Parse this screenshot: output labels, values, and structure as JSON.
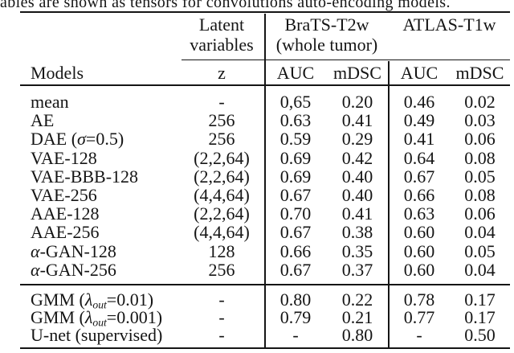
{
  "caption": "ables are shown as tensors for convolutions auto-encoding models.",
  "colors": {
    "text": "#151515",
    "background": "#ffffff"
  },
  "table": {
    "header": {
      "latent_line1": "Latent",
      "latent_line2": "variables",
      "brats_line1": "BraTS-T2w",
      "brats_line2": "(whole tumor)",
      "atlas": "ATLAS-T1w",
      "models": "Models",
      "z": "z",
      "auc": "AUC",
      "mdsc": "mDSC"
    },
    "rows_main": [
      {
        "m1": "mean",
        "g": "",
        "sub": "",
        "m2": "",
        "z": "-",
        "auc1": "0,65",
        "mdsc1": "0.20",
        "auc2": "0.46",
        "mdsc2": "0.02"
      },
      {
        "m1": "AE",
        "g": "",
        "sub": "",
        "m2": "",
        "z": "256",
        "auc1": "0.63",
        "mdsc1": "0.41",
        "auc2": "0.49",
        "mdsc2": "0.03"
      },
      {
        "m1": "DAE (",
        "g": "σ",
        "sub": "",
        "m2": "=0.5)",
        "z": "256",
        "auc1": "0.59",
        "mdsc1": "0.29",
        "auc2": "0.41",
        "mdsc2": "0.06"
      },
      {
        "m1": "VAE-128",
        "g": "",
        "sub": "",
        "m2": "",
        "z": "(2,2,64)",
        "auc1": "0.69",
        "mdsc1": "0.42",
        "auc2": "0.64",
        "mdsc2": "0.08"
      },
      {
        "m1": "VAE-BBB-128",
        "g": "",
        "sub": "",
        "m2": "",
        "z": "(2,2,64)",
        "auc1": "0.69",
        "mdsc1": "0.40",
        "auc2": "0.67",
        "mdsc2": "0.05"
      },
      {
        "m1": "VAE-256",
        "g": "",
        "sub": "",
        "m2": "",
        "z": "(4,4,64)",
        "auc1": "0.67",
        "mdsc1": "0.40",
        "auc2": "0.66",
        "mdsc2": "0.08"
      },
      {
        "m1": "AAE-128",
        "g": "",
        "sub": "",
        "m2": "",
        "z": "(2,2,64)",
        "auc1": "0.70",
        "mdsc1": "0.41",
        "auc2": "0.63",
        "mdsc2": "0.06"
      },
      {
        "m1": "AAE-256",
        "g": "",
        "sub": "",
        "m2": "",
        "z": "(4,4,64)",
        "auc1": "0.67",
        "mdsc1": "0.38",
        "auc2": "0.60",
        "mdsc2": "0.04"
      },
      {
        "m1": "",
        "g": "α",
        "sub": "",
        "m2": "-GAN-128",
        "z": "128",
        "auc1": "0.66",
        "mdsc1": "0.35",
        "auc2": "0.60",
        "mdsc2": "0.05"
      },
      {
        "m1": "",
        "g": "α",
        "sub": "",
        "m2": "-GAN-256",
        "z": "256",
        "auc1": "0.67",
        "mdsc1": "0.37",
        "auc2": "0.60",
        "mdsc2": "0.04"
      }
    ],
    "rows_bottom": [
      {
        "m1": "GMM (",
        "g": "λ",
        "sub": "out",
        "m2": "=0.01)",
        "z": "-",
        "auc1": "0.80",
        "mdsc1": "0.22",
        "auc2": "0.78",
        "mdsc2": "0.17"
      },
      {
        "m1": "GMM (",
        "g": "λ",
        "sub": "out",
        "m2": "=0.001)",
        "z": "-",
        "auc1": "0.79",
        "mdsc1": "0.21",
        "auc2": "0.77",
        "mdsc2": "0.17"
      },
      {
        "m1": "U-net (supervised)",
        "g": "",
        "sub": "",
        "m2": "",
        "z": "-",
        "auc1": "-",
        "mdsc1": "0.80",
        "auc2": "-",
        "mdsc2": "0.50"
      }
    ]
  }
}
